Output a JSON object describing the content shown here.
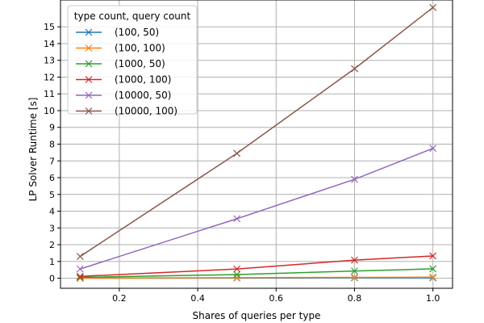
{
  "chart_data": {
    "type": "line",
    "xlabel": "Shares of queries per type",
    "ylabel": "LP Solver Runtime [s]",
    "xlim": [
      0.05,
      1.05
    ],
    "ylim": [
      -0.6,
      16.6
    ],
    "x_ticks": [
      "0.2",
      "0.4",
      "0.6",
      "0.8",
      "1.0"
    ],
    "y_ticks": [
      "0",
      "1",
      "2",
      "3",
      "4",
      "5",
      "6",
      "7",
      "8",
      "9",
      "10",
      "11",
      "12",
      "13",
      "14",
      "15"
    ],
    "grid": true,
    "legend": {
      "title": "type count, query count",
      "placement": "top-left"
    },
    "x": [
      0.1,
      0.5,
      0.8,
      1.0
    ],
    "series": [
      {
        "name": "(100, 50)",
        "color": "#1f77b4",
        "marker": "x",
        "values": [
          0.0,
          0.01,
          0.02,
          0.02
        ]
      },
      {
        "name": "(100, 100)",
        "color": "#ff7f0e",
        "marker": "x",
        "values": [
          0.01,
          0.03,
          0.05,
          0.06
        ]
      },
      {
        "name": "(1000, 50)",
        "color": "#2ca02c",
        "marker": "x",
        "values": [
          0.05,
          0.22,
          0.43,
          0.56
        ]
      },
      {
        "name": "(1000, 100)",
        "color": "#d62728",
        "marker": "x",
        "values": [
          0.11,
          0.55,
          1.08,
          1.33
        ]
      },
      {
        "name": "(10000, 50)",
        "color": "#9467bd",
        "marker": "x",
        "values": [
          0.55,
          3.55,
          5.9,
          7.75
        ]
      },
      {
        "name": "(10000, 100)",
        "color": "#8c564b",
        "marker": "x",
        "values": [
          1.3,
          7.45,
          12.5,
          16.15
        ]
      }
    ]
  }
}
